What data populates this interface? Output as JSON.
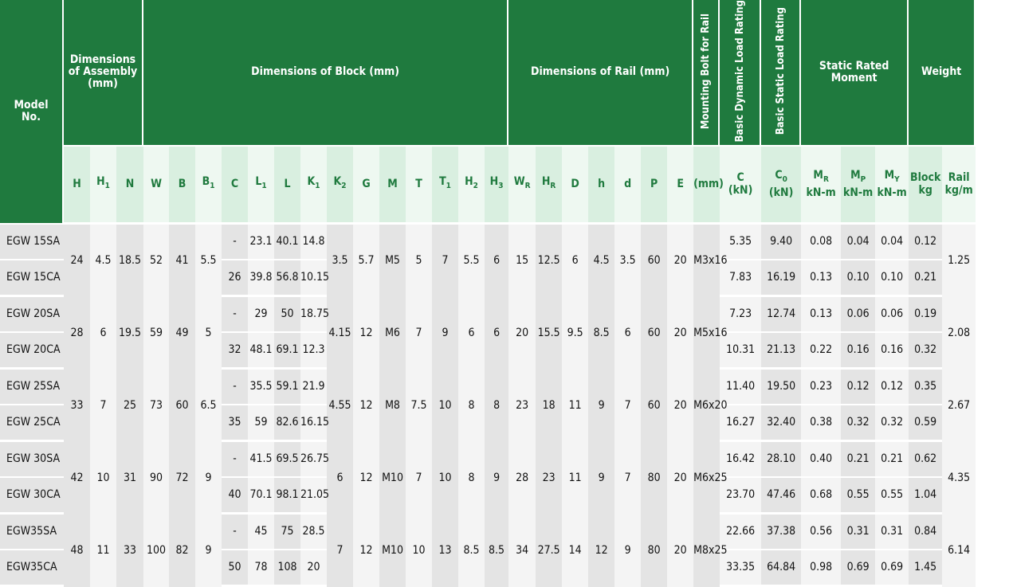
{
  "header": {
    "model": "Model\nNo.",
    "assembly": "Dimensions\nof Assembly\n(mm)",
    "block": "Dimensions of Block (mm)",
    "rail": "Dimensions of Rail (mm)",
    "bolt": "Mounting Bolt for Rail",
    "dyn": "Basic Dynamic Load Rating",
    "stat": "Basic Static Load Rating",
    "moment": "Static Rated\nMoment",
    "weight": "Weight"
  },
  "subheaders": {
    "H": "H",
    "H1": "H1",
    "N": "N",
    "W": "W",
    "B": "B",
    "B1": "B1",
    "C": "C",
    "L1": "L1",
    "L": "L",
    "K1": "K1",
    "K2": "K2",
    "G": "G",
    "M": "M",
    "T": "T",
    "T1": "T1",
    "H2": "H2",
    "H3": "H3",
    "WR": "WR",
    "HR": "HR",
    "D": "D",
    "h": "h",
    "d": "d",
    "P": "P",
    "E": "E",
    "bolt": "(mm)",
    "c": "C\n(kN)",
    "c0": "C0\n(kN)",
    "mr": "MR\nkN-m",
    "mp": "MP\nkN-m",
    "my": "MY\nkN-m",
    "block": "Block\nkg",
    "rail": "Rail\nkg/m"
  },
  "rows": [
    {
      "models": [
        "EGW 15SA",
        "EGW 15CA"
      ],
      "H": "24",
      "H1": "4.5",
      "N": "18.5",
      "W": "52",
      "B": "41",
      "B1": "5.5",
      "C": [
        "-",
        "26"
      ],
      "L1": [
        "23.1",
        "39.8"
      ],
      "L": [
        "40.1",
        "56.8"
      ],
      "K1": [
        "14.8",
        "10.15"
      ],
      "K2": "3.5",
      "G": "5.7",
      "M": "M5",
      "T": "5",
      "T1": "7",
      "H2": "5.5",
      "H3": "6",
      "WR": "15",
      "HR": "12.5",
      "D": "6",
      "h": "4.5",
      "d": "3.5",
      "P": "60",
      "E": "20",
      "bolt": "M3x16",
      "c": [
        "5.35",
        "7.83"
      ],
      "c0": [
        "9.40",
        "16.19"
      ],
      "mr": [
        "0.08",
        "0.13"
      ],
      "mp": [
        "0.04",
        "0.10"
      ],
      "my": [
        "0.04",
        "0.10"
      ],
      "block": [
        "0.12",
        "0.21"
      ],
      "rail": "1.25"
    },
    {
      "models": [
        "EGW 20SA",
        "EGW 20CA"
      ],
      "H": "28",
      "H1": "6",
      "N": "19.5",
      "W": "59",
      "B": "49",
      "B1": "5",
      "C": [
        "-",
        "32"
      ],
      "L1": [
        "29",
        "48.1"
      ],
      "L": [
        "50",
        "69.1"
      ],
      "K1": [
        "18.75",
        "12.3"
      ],
      "K2": "4.15",
      "G": "12",
      "M": "M6",
      "T": "7",
      "T1": "9",
      "H2": "6",
      "H3": "6",
      "WR": "20",
      "HR": "15.5",
      "D": "9.5",
      "h": "8.5",
      "d": "6",
      "P": "60",
      "E": "20",
      "bolt": "M5x16",
      "c": [
        "7.23",
        "10.31"
      ],
      "c0": [
        "12.74",
        "21.13"
      ],
      "mr": [
        "0.13",
        "0.22"
      ],
      "mp": [
        "0.06",
        "0.16"
      ],
      "my": [
        "0.06",
        "0.16"
      ],
      "block": [
        "0.19",
        "0.32"
      ],
      "rail": "2.08"
    },
    {
      "models": [
        "EGW 25SA",
        "EGW 25CA"
      ],
      "H": "33",
      "H1": "7",
      "N": "25",
      "W": "73",
      "B": "60",
      "B1": "6.5",
      "C": [
        "-",
        "35"
      ],
      "L1": [
        "35.5",
        "59"
      ],
      "L": [
        "59.1",
        "82.6"
      ],
      "K1": [
        "21.9",
        "16.15"
      ],
      "K2": "4.55",
      "G": "12",
      "M": "M8",
      "T": "7.5",
      "T1": "10",
      "H2": "8",
      "H3": "8",
      "WR": "23",
      "HR": "18",
      "D": "11",
      "h": "9",
      "d": "7",
      "P": "60",
      "E": "20",
      "bolt": "M6x20",
      "c": [
        "11.40",
        "16.27"
      ],
      "c0": [
        "19.50",
        "32.40"
      ],
      "mr": [
        "0.23",
        "0.38"
      ],
      "mp": [
        "0.12",
        "0.32"
      ],
      "my": [
        "0.12",
        "0.32"
      ],
      "block": [
        "0.35",
        "0.59"
      ],
      "rail": "2.67"
    },
    {
      "models": [
        "EGW 30SA",
        "EGW 30CA"
      ],
      "H": "42",
      "H1": "10",
      "N": "31",
      "W": "90",
      "B": "72",
      "B1": "9",
      "C": [
        "-",
        "40"
      ],
      "L1": [
        "41.5",
        "70.1"
      ],
      "L": [
        "69.5",
        "98.1"
      ],
      "K1": [
        "26.75",
        "21.05"
      ],
      "K2": "6",
      "G": "12",
      "M": "M10",
      "T": "7",
      "T1": "10",
      "H2": "8",
      "H3": "9",
      "WR": "28",
      "HR": "23",
      "D": "11",
      "h": "9",
      "d": "7",
      "P": "80",
      "E": "20",
      "bolt": "M6x25",
      "c": [
        "16.42",
        "23.70"
      ],
      "c0": [
        "28.10",
        "47.46"
      ],
      "mr": [
        "0.40",
        "0.68"
      ],
      "mp": [
        "0.21",
        "0.55"
      ],
      "my": [
        "0.21",
        "0.55"
      ],
      "block": [
        "0.62",
        "1.04"
      ],
      "rail": "4.35"
    },
    {
      "models": [
        "EGW35SA",
        "EGW35CA"
      ],
      "H": "48",
      "H1": "11",
      "N": "33",
      "W": "100",
      "B": "82",
      "B1": "9",
      "C": [
        "-",
        "50"
      ],
      "L1": [
        "45",
        "78"
      ],
      "L": [
        "75",
        "108"
      ],
      "K1": [
        "28.5",
        "20"
      ],
      "K2": "7",
      "G": "12",
      "M": "M10",
      "T": "10",
      "T1": "13",
      "H2": "8.5",
      "H3": "8.5",
      "WR": "34",
      "HR": "27.5",
      "D": "14",
      "h": "12",
      "d": "9",
      "P": "80",
      "E": "20",
      "bolt": "M8x25",
      "c": [
        "22.66",
        "33.35"
      ],
      "c0": [
        "37.38",
        "64.84"
      ],
      "mr": [
        "0.56",
        "0.98"
      ],
      "mp": [
        "0.31",
        "0.69"
      ],
      "my": [
        "0.31",
        "0.69"
      ],
      "block": [
        "0.84",
        "1.45"
      ],
      "rail": "6.14"
    }
  ]
}
